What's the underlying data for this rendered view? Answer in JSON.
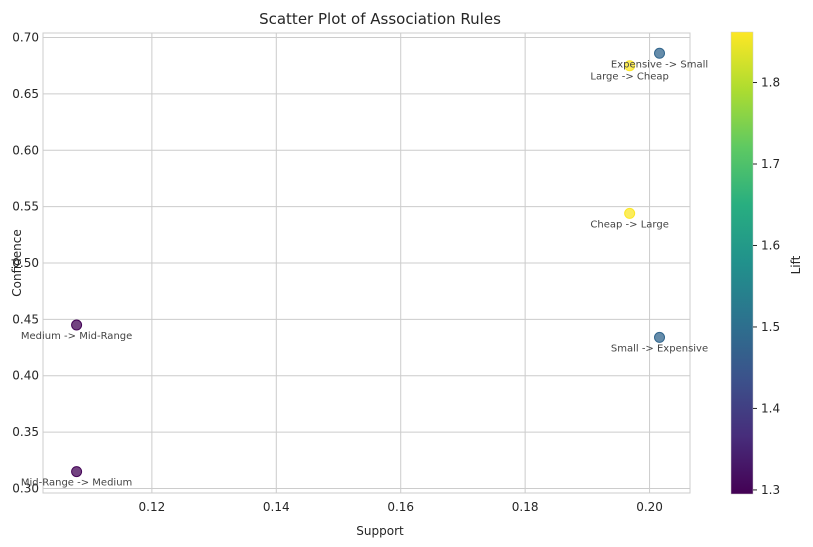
{
  "chart_data": {
    "type": "scatter",
    "title": "Scatter Plot of Association Rules",
    "xlabel": "Support",
    "ylabel": "Confidence",
    "xlim": [
      0.1025,
      0.2065
    ],
    "ylim": [
      0.296,
      0.704
    ],
    "x_ticks": [
      0.12,
      0.14,
      0.16,
      0.18,
      0.2
    ],
    "x_tick_labels": [
      "0.12",
      "0.14",
      "0.16",
      "0.18",
      "0.20"
    ],
    "y_ticks": [
      0.3,
      0.35,
      0.4,
      0.45,
      0.5,
      0.55,
      0.6,
      0.65,
      0.7
    ],
    "y_tick_labels": [
      "0.30",
      "0.35",
      "0.40",
      "0.45",
      "0.50",
      "0.55",
      "0.60",
      "0.65",
      "0.70"
    ],
    "grid": true,
    "colormap": "viridis",
    "colorbar": {
      "label": "Lift",
      "range": [
        1.295,
        1.862
      ],
      "ticks": [
        1.3,
        1.4,
        1.5,
        1.6,
        1.7,
        1.8
      ],
      "tick_labels": [
        "1.3",
        "1.4",
        "1.5",
        "1.6",
        "1.7",
        "1.8"
      ]
    },
    "points": [
      {
        "rule": "Expensive -> Small",
        "support": 0.2016,
        "confidence": 0.686,
        "lift": 1.48
      },
      {
        "rule": "Large -> Cheap",
        "support": 0.1968,
        "confidence": 0.675,
        "lift": 1.86
      },
      {
        "rule": "Cheap -> Large",
        "support": 0.1968,
        "confidence": 0.544,
        "lift": 1.86
      },
      {
        "rule": "Medium -> Mid-Range",
        "support": 0.1079,
        "confidence": 0.445,
        "lift": 1.3
      },
      {
        "rule": "Small -> Expensive",
        "support": 0.2016,
        "confidence": 0.434,
        "lift": 1.48
      },
      {
        "rule": "Mid-Range -> Medium",
        "support": 0.1079,
        "confidence": 0.315,
        "lift": 1.3
      }
    ]
  }
}
